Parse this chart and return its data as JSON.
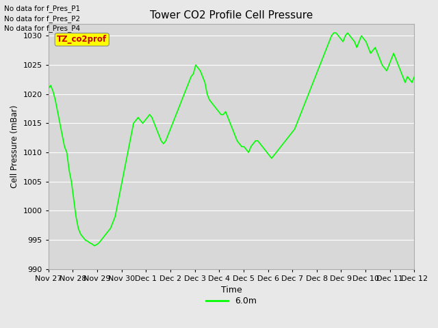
{
  "title": "Tower CO2 Profile Cell Pressure",
  "ylabel": "Cell Pressure (mBar)",
  "xlabel": "Time",
  "legend_label": "6.0m",
  "legend_color": "#00ff00",
  "line_color": "#00ff00",
  "fig_bg_color": "#e8e8e8",
  "plot_bg_color": "#d8d8d8",
  "ylim": [
    990,
    1032
  ],
  "yticks": [
    990,
    995,
    1000,
    1005,
    1010,
    1015,
    1020,
    1025,
    1030
  ],
  "annotations": [
    "No data for f_Pres_P1",
    "No data for f_Pres_P2",
    "No data for f_Pres_P4"
  ],
  "tooltip_text": "TZ_co2prof",
  "tooltip_bg": "#ffff00",
  "tooltip_fg": "#cc0000",
  "x_tick_labels": [
    "Nov 27",
    "Nov 28",
    "Nov 29",
    "Nov 30",
    "Dec 1",
    "Dec 2",
    "Dec 3",
    "Dec 4",
    "Dec 5",
    "Dec 6",
    "Dec 7",
    "Dec 8",
    "Dec 9",
    "Dec 10",
    "Dec 11",
    "Dec 12"
  ],
  "x_tick_positions": [
    0,
    1,
    2,
    3,
    4,
    5,
    6,
    7,
    8,
    9,
    10,
    11,
    12,
    13,
    14,
    15
  ],
  "y_data": [
    1021,
    1021.5,
    1020.5,
    1019,
    1017,
    1015,
    1013,
    1011,
    1010,
    1007,
    1005,
    1002,
    999,
    997,
    996,
    995.5,
    995,
    994.8,
    994.5,
    994.3,
    994.0,
    994.2,
    994.5,
    995.0,
    995.5,
    996,
    996.5,
    997,
    998,
    999,
    1001,
    1003,
    1005,
    1007,
    1009,
    1011,
    1013,
    1015,
    1015.5,
    1016,
    1015.5,
    1015,
    1015.5,
    1016,
    1016.5,
    1016,
    1015,
    1014,
    1013,
    1012,
    1011.5,
    1012,
    1013,
    1014,
    1015,
    1016,
    1017,
    1018,
    1019,
    1020,
    1021,
    1022,
    1023,
    1023.5,
    1025,
    1024.5,
    1024,
    1023,
    1022,
    1020,
    1019,
    1018.5,
    1018,
    1017.5,
    1017,
    1016.5,
    1016.5,
    1017,
    1016,
    1015,
    1014,
    1013,
    1012,
    1011.5,
    1011,
    1011,
    1010.5,
    1010,
    1011,
    1011.5,
    1012,
    1012,
    1011.5,
    1011,
    1010.5,
    1010,
    1009.5,
    1009,
    1009.5,
    1010,
    1010.5,
    1011,
    1011.5,
    1012,
    1012.5,
    1013,
    1013.5,
    1014,
    1015,
    1016,
    1017,
    1018,
    1019,
    1020,
    1021,
    1022,
    1023,
    1024,
    1025,
    1026,
    1027,
    1028,
    1029,
    1030,
    1030.5,
    1030.5,
    1030,
    1029.5,
    1029,
    1030,
    1030.5,
    1030,
    1029.5,
    1029,
    1028,
    1029,
    1030,
    1029.5,
    1029,
    1028,
    1027,
    1027.5,
    1028,
    1027,
    1026,
    1025,
    1024.5,
    1024,
    1025,
    1026,
    1027,
    1026,
    1025,
    1024,
    1023,
    1022,
    1023,
    1022.5,
    1022,
    1023
  ]
}
